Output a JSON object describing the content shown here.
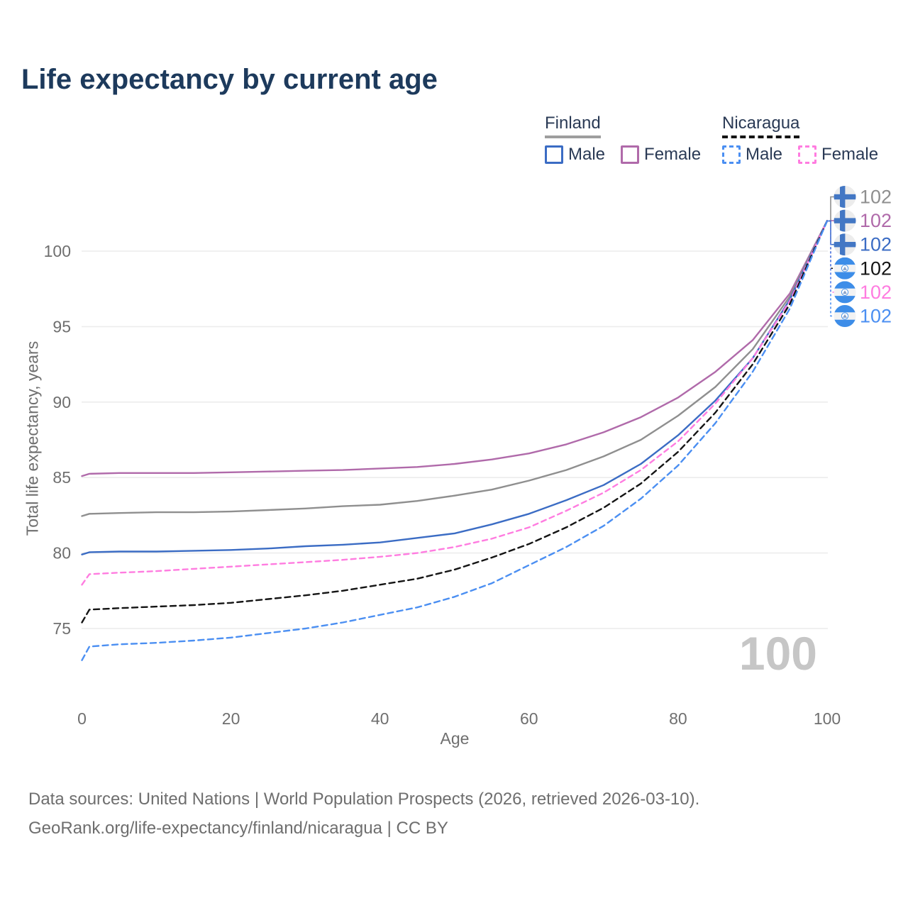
{
  "title": "Life expectancy by current age",
  "legend": {
    "finland": {
      "name": "Finland",
      "male_label": "Male",
      "female_label": "Female",
      "male_color": "#3b6cc4",
      "female_color": "#b06aaa",
      "group_line_color": "#9e9e9e",
      "group_line_style": "solid"
    },
    "nicaragua": {
      "name": "Nicaragua",
      "male_label": "Male",
      "female_label": "Female",
      "male_color": "#4b8ff2",
      "female_color": "#ff7ce0",
      "group_line_color": "#141414",
      "group_line_style": "dashed"
    }
  },
  "watermark": "100",
  "end_labels": [
    {
      "value": "102",
      "flag": "finland",
      "series": "Finland (both sexes)",
      "color": "#8f8f8f",
      "dashed": false
    },
    {
      "value": "102",
      "flag": "finland",
      "series": "Finland Female",
      "color": "#b06aaa",
      "dashed": false
    },
    {
      "value": "102",
      "flag": "finland",
      "series": "Finland Male",
      "color": "#3b6cc4",
      "dashed": false
    },
    {
      "value": "102",
      "flag": "nicaragua",
      "series": "Nicaragua (both sexes)",
      "color": "#141414",
      "dashed": true
    },
    {
      "value": "102",
      "flag": "nicaragua",
      "series": "Nicaragua Female",
      "color": "#ff7ce0",
      "dashed": true
    },
    {
      "value": "102",
      "flag": "nicaragua",
      "series": "Nicaragua Male",
      "color": "#4b8ff2",
      "dashed": true
    }
  ],
  "chart_data": {
    "type": "line",
    "title": "Life expectancy by current age",
    "xlabel": "Age",
    "ylabel": "Total life expectancy, years",
    "xlim": [
      0,
      100
    ],
    "ylim": [
      72.5,
      102.5
    ],
    "xticks": [
      0,
      20,
      40,
      60,
      80,
      100
    ],
    "yticks": [
      75,
      80,
      85,
      90,
      95,
      100
    ],
    "grid": "horizontal",
    "legend_position": "top-right",
    "x": [
      0,
      1,
      5,
      10,
      15,
      20,
      25,
      30,
      35,
      40,
      45,
      50,
      55,
      60,
      65,
      70,
      75,
      80,
      85,
      90,
      95,
      100
    ],
    "series": [
      {
        "id": "finland-female",
        "name": "Finland Female",
        "color": "#b06aaa",
        "style": "solid",
        "dash": "",
        "values": [
          85.1,
          85.25,
          85.3,
          85.3,
          85.3,
          85.35,
          85.4,
          85.45,
          85.5,
          85.6,
          85.7,
          85.9,
          86.2,
          86.6,
          87.2,
          88.0,
          89.0,
          90.3,
          92.0,
          94.1,
          97.2,
          102
        ]
      },
      {
        "id": "finland-total",
        "name": "Finland (both sexes)",
        "color": "#8f8f8f",
        "style": "solid",
        "dash": "",
        "values": [
          82.45,
          82.6,
          82.65,
          82.7,
          82.7,
          82.75,
          82.85,
          82.95,
          83.1,
          83.2,
          83.45,
          83.8,
          84.2,
          84.8,
          85.5,
          86.4,
          87.5,
          89.1,
          91.0,
          93.5,
          97.0,
          102
        ]
      },
      {
        "id": "finland-male",
        "name": "Finland Male",
        "color": "#3b6cc4",
        "style": "solid",
        "dash": "",
        "values": [
          79.9,
          80.05,
          80.1,
          80.1,
          80.15,
          80.2,
          80.3,
          80.45,
          80.55,
          80.7,
          81.0,
          81.3,
          81.9,
          82.6,
          83.5,
          84.5,
          85.9,
          87.8,
          90.1,
          92.9,
          96.8,
          102
        ]
      },
      {
        "id": "nicaragua-female",
        "name": "Nicaragua Female",
        "color": "#ff7ce0",
        "style": "dashed",
        "dash": "7 5.5",
        "values": [
          77.9,
          78.6,
          78.7,
          78.8,
          78.95,
          79.1,
          79.25,
          79.4,
          79.55,
          79.75,
          80.0,
          80.4,
          80.95,
          81.7,
          82.8,
          84.0,
          85.5,
          87.4,
          89.9,
          92.9,
          96.7,
          102
        ]
      },
      {
        "id": "nicaragua-total",
        "name": "Nicaragua (both sexes)",
        "color": "#141414",
        "style": "dashed",
        "dash": "8 5.5",
        "values": [
          75.4,
          76.25,
          76.35,
          76.45,
          76.55,
          76.7,
          76.95,
          77.2,
          77.5,
          77.9,
          78.3,
          78.9,
          79.7,
          80.6,
          81.7,
          83.0,
          84.6,
          86.7,
          89.3,
          92.5,
          96.5,
          102
        ]
      },
      {
        "id": "nicaragua-male",
        "name": "Nicaragua Male",
        "color": "#4b8ff2",
        "style": "dashed",
        "dash": "8 5.5",
        "values": [
          72.9,
          73.8,
          73.95,
          74.05,
          74.2,
          74.4,
          74.7,
          75.0,
          75.4,
          75.9,
          76.4,
          77.1,
          78.0,
          79.2,
          80.4,
          81.8,
          83.6,
          85.8,
          88.6,
          92.0,
          96.2,
          102
        ]
      }
    ],
    "annotations": "All six series converge to a total life expectancy of 102 years at age 100; hover age indicator shows 100."
  },
  "footer": {
    "line1": "Data sources: United Nations | World Population Prospects (2026, retrieved 2026-03-10).",
    "line2": "GeoRank.org/life-expectancy/finland/nicaragua | CC BY"
  }
}
